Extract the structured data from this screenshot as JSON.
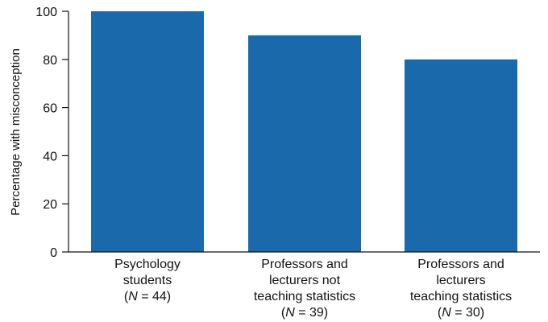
{
  "chart_data": {
    "type": "bar",
    "categories": [
      {
        "lines": [
          [
            {
              "text": "Psychology",
              "italic": false
            }
          ],
          [
            {
              "text": "students",
              "italic": false
            }
          ],
          [
            {
              "text": "(",
              "italic": false
            },
            {
              "text": "N",
              "italic": true
            },
            {
              "text": " = 44)",
              "italic": false
            }
          ]
        ]
      },
      {
        "lines": [
          [
            {
              "text": "Professors and",
              "italic": false
            }
          ],
          [
            {
              "text": "lecturers not",
              "italic": false
            }
          ],
          [
            {
              "text": "teaching statistics",
              "italic": false
            }
          ],
          [
            {
              "text": "(",
              "italic": false
            },
            {
              "text": "N",
              "italic": true
            },
            {
              "text": " = 39)",
              "italic": false
            }
          ]
        ]
      },
      {
        "lines": [
          [
            {
              "text": "Professors and",
              "italic": false
            }
          ],
          [
            {
              "text": "lecturers",
              "italic": false
            }
          ],
          [
            {
              "text": "teaching statistics",
              "italic": false
            }
          ],
          [
            {
              "text": "(",
              "italic": false
            },
            {
              "text": "N",
              "italic": true
            },
            {
              "text": " = 30)",
              "italic": false
            }
          ]
        ]
      }
    ],
    "values": [
      100,
      90,
      80
    ],
    "ylabel": "Percentage with misconception",
    "xlabel": "",
    "ylim": [
      0,
      100
    ],
    "yticks": [
      0,
      20,
      40,
      60,
      80,
      100
    ],
    "bar_color": "#1a6aab",
    "grid": false,
    "legend": "none"
  }
}
